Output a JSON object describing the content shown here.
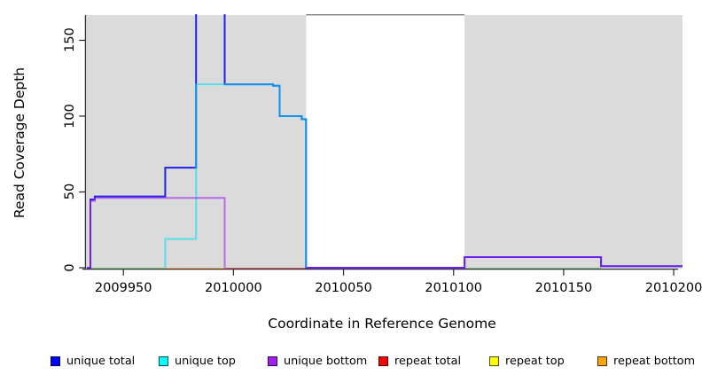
{
  "chart_data": {
    "type": "line",
    "subtype": "step-coverage-plot",
    "xlabel": "Coordinate in Reference Genome",
    "ylabel": "Read Coverage Depth",
    "xlim": [
      2009933,
      2010204
    ],
    "ylim": [
      0,
      176
    ],
    "grid": false,
    "x_ticks": {
      "values": [
        2009950,
        2010000,
        2010050,
        2010100,
        2010150,
        2010200
      ],
      "labels": [
        "2009950",
        "2010000",
        "2010050",
        "2010100",
        "2010150",
        "2010200"
      ]
    },
    "y_ticks": {
      "values": [
        0,
        50,
        100,
        150
      ],
      "labels": [
        "0",
        "50",
        "100",
        "150"
      ]
    },
    "background_regions": [
      {
        "name": "repeat-region-left",
        "from": 2009933,
        "to": 2010033,
        "color": "#DBDBDB"
      },
      {
        "name": "unique-gap",
        "from": 2010033,
        "to": 2010105,
        "color": "#FFFFFF"
      },
      {
        "name": "repeat-region-right",
        "from": 2010105,
        "to": 2010204,
        "color": "#DBDBDB"
      }
    ],
    "series": [
      {
        "name": "unique total",
        "color": "#0000FF",
        "steps": [
          [
            2009935,
            45
          ],
          [
            2009937,
            47
          ],
          [
            2009969,
            66
          ],
          [
            2009983,
            168
          ],
          [
            2009996,
            121
          ],
          [
            2010018,
            120
          ],
          [
            2010021,
            100
          ],
          [
            2010031,
            98
          ],
          [
            2010033,
            0
          ],
          [
            2010105,
            7
          ],
          [
            2010167,
            1
          ]
        ]
      },
      {
        "name": "unique top",
        "color": "#00FFFF",
        "steps": [
          [
            2009969,
            19
          ],
          [
            2009983,
            121
          ],
          [
            2010018,
            120
          ],
          [
            2010021,
            100
          ],
          [
            2010031,
            98
          ],
          [
            2010033,
            0
          ]
        ]
      },
      {
        "name": "unique bottom",
        "color": "#A020F0",
        "steps": [
          [
            2009935,
            45
          ],
          [
            2009937,
            47
          ],
          [
            2009996,
            0
          ],
          [
            2010105,
            7
          ],
          [
            2010167,
            1
          ]
        ]
      },
      {
        "name": "repeat total",
        "color": "#FF0000",
        "steps": [
          [
            2009933,
            0
          ]
        ]
      },
      {
        "name": "repeat top",
        "color": "#FFFF00",
        "steps": [
          [
            2009933,
            0
          ]
        ]
      },
      {
        "name": "repeat bottom",
        "color": "#FFA500",
        "steps": [
          [
            2009933,
            0
          ]
        ]
      }
    ],
    "render_strokes": [
      {
        "id": "zero-line-green-left",
        "color": "#7CC98B",
        "width": 2,
        "opacity": 1,
        "points": [
          [
            2009934.5,
            -0.5
          ],
          [
            2009969,
            -0.5
          ]
        ]
      },
      {
        "id": "zero-line-orange",
        "color": "#FFA024",
        "width": 2,
        "opacity": 1,
        "points": [
          [
            2009969,
            -0.7
          ],
          [
            2009996,
            -0.7
          ]
        ]
      },
      {
        "id": "zero-line-red",
        "color": "#E0566E",
        "width": 2,
        "opacity": 1,
        "points": [
          [
            2009996,
            -0.6
          ],
          [
            2010033,
            -0.6
          ]
        ]
      },
      {
        "id": "zero-line-green-right",
        "color": "#7CC98B",
        "width": 2,
        "opacity": 1,
        "points": [
          [
            2010105,
            -0.5
          ],
          [
            2010167,
            -0.5
          ]
        ]
      },
      {
        "id": "unique-total-line",
        "color": "#2121EA",
        "width": 2,
        "opacity": 1,
        "points": [
          [
            2009933.5,
            0
          ],
          [
            2009935,
            0
          ],
          [
            2009935,
            45
          ],
          [
            2009937,
            45
          ],
          [
            2009937,
            47
          ],
          [
            2009969,
            47
          ],
          [
            2009969,
            66
          ],
          [
            2009983,
            66
          ],
          [
            2009983,
            168
          ],
          [
            2009996,
            168
          ],
          [
            2009996,
            121
          ],
          [
            2010018,
            121
          ],
          [
            2010018,
            120
          ],
          [
            2010021,
            120
          ],
          [
            2010021,
            100
          ],
          [
            2010031,
            100
          ],
          [
            2010031,
            98
          ],
          [
            2010033,
            98
          ],
          [
            2010033,
            0
          ],
          [
            2010105,
            0
          ],
          [
            2010105,
            7
          ],
          [
            2010167,
            7
          ],
          [
            2010167,
            1
          ],
          [
            2010204,
            1
          ]
        ]
      },
      {
        "id": "unique-top-line",
        "color": "#00E0F0",
        "width": 2,
        "opacity": 0.6,
        "points": [
          [
            2009969,
            0
          ],
          [
            2009969,
            19
          ],
          [
            2009983,
            19
          ],
          [
            2009983,
            121
          ],
          [
            2010018,
            121
          ],
          [
            2010018,
            120
          ],
          [
            2010021,
            120
          ],
          [
            2010021,
            100
          ],
          [
            2010031,
            100
          ],
          [
            2010031,
            98
          ],
          [
            2010033,
            98
          ],
          [
            2010033,
            0
          ]
        ]
      },
      {
        "id": "unique-bottom-line-left",
        "color": "#A020F0",
        "width": 2,
        "opacity": 0.6,
        "points": [
          [
            2009933.5,
            0
          ],
          [
            2009935,
            0
          ],
          [
            2009935,
            44
          ],
          [
            2009937,
            44
          ],
          [
            2009937,
            46
          ],
          [
            2009996,
            46
          ],
          [
            2009996,
            0
          ]
        ]
      },
      {
        "id": "unique-bottom-line-right",
        "color": "#A020F0",
        "width": 2,
        "opacity": 0.6,
        "points": [
          [
            2010033,
            0
          ],
          [
            2010105,
            0
          ],
          [
            2010105,
            7
          ],
          [
            2010167,
            7
          ],
          [
            2010167,
            1
          ],
          [
            2010204,
            1
          ]
        ]
      }
    ]
  },
  "legend": {
    "items": [
      {
        "label": "unique total",
        "color": "#0000FF"
      },
      {
        "label": "unique top",
        "color": "#00FFFF"
      },
      {
        "label": "unique bottom",
        "color": "#A020F0"
      },
      {
        "label": "repeat total",
        "color": "#FF0000"
      },
      {
        "label": "repeat top",
        "color": "#FFFF00"
      },
      {
        "label": "repeat bottom",
        "color": "#FFA500"
      }
    ]
  }
}
